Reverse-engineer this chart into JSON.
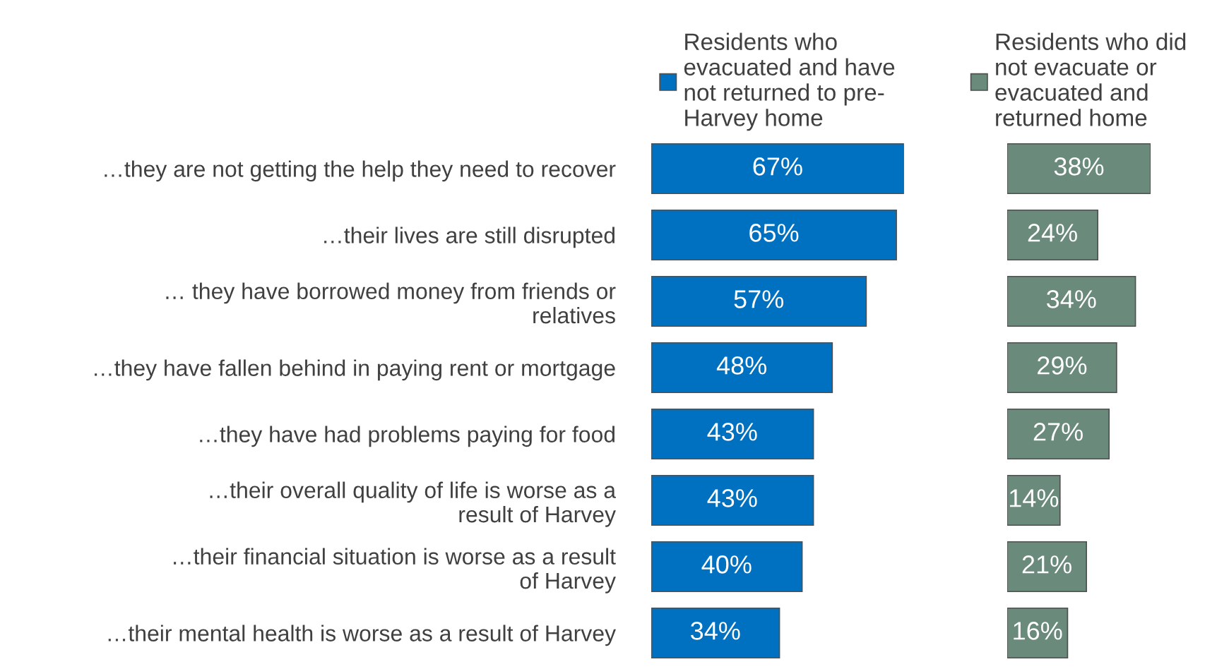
{
  "chart_data": [
    {
      "type": "bar",
      "orientation": "horizontal",
      "legend": "top",
      "tick_labels": "y",
      "categories": [
        "…they are not getting the help they need to recover",
        "…their lives are still disrupted",
        "… they have borrowed money from friends or\nrelatives",
        "…they have fallen behind in paying rent or mortgage",
        "…they have had problems paying for food",
        "…their overall quality of life is worse as a\nresult of Harvey",
        "…their financial situation is worse as a result\nof Harvey",
        "…their mental health is worse as a result of Harvey"
      ],
      "series": [
        {
          "name": "Residents who\nevacuated and have\nnot returned to pre-\nHarvey home",
          "color": "#0070c0",
          "values": [
            67,
            65,
            57,
            48,
            43,
            43,
            40,
            34
          ],
          "value_labels": [
            "67%",
            "65%",
            "57%",
            "48%",
            "43%",
            "43%",
            "40%",
            "34%"
          ]
        }
      ]
    },
    {
      "type": "bar",
      "orientation": "horizontal",
      "legend": "top",
      "tick_labels": false,
      "categories": [
        null,
        null,
        null,
        null,
        null,
        null,
        null,
        null
      ],
      "series": [
        {
          "name": "Residents who did\nnot evacuate or\nevacuated and\nreturned home",
          "color": "#6a8a7c",
          "values": [
            38,
            24,
            34,
            29,
            27,
            14,
            21,
            16
          ],
          "value_labels": [
            "38%",
            "24%",
            "34%",
            "29%",
            "27%",
            "14%",
            "21%",
            "16%"
          ]
        }
      ]
    }
  ]
}
